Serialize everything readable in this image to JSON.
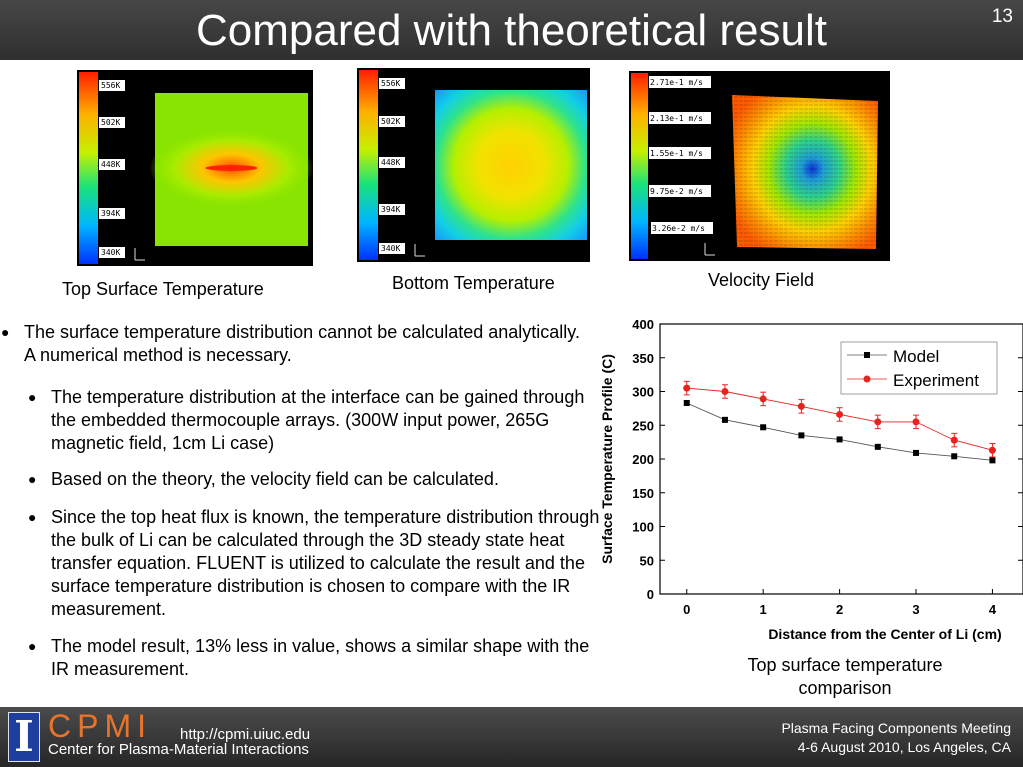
{
  "slide": {
    "title": "Compared with theoretical result",
    "number": "13"
  },
  "panels": {
    "top_surface": {
      "caption": "Top Surface Temperature",
      "scale": [
        "556K",
        "502K",
        "448K",
        "394K",
        "340K"
      ]
    },
    "bottom": {
      "caption": "Bottom Temperature",
      "scale": [
        "556K",
        "502K",
        "448K",
        "394K",
        "340K"
      ]
    },
    "velocity": {
      "caption": "Velocity Field",
      "scale": [
        "2.71e-1 m/s",
        "2.13e-1 m/s",
        "1.55e-1 m/s",
        "9.75e-2 m/s",
        "3.26e-2 m/s"
      ]
    }
  },
  "bullets": {
    "main": "The surface temperature distribution cannot be calculated analytically. A numerical method is necessary.",
    "sub1": "The temperature distribution at the interface can be gained through the embedded thermocouple arrays. (300W input power, 265G magnetic field, 1cm Li case)",
    "sub2": "Based on the theory, the velocity field can be calculated.",
    "sub3": "Since the top heat flux is known, the temperature distribution through the bulk of Li can be calculated through the 3D steady state heat transfer equation. FLUENT is utilized to calculate the result and the surface temperature distribution is chosen to compare with the IR measurement.",
    "sub4": "The model result, 13% less in value, shows a similar shape with the IR measurement."
  },
  "chart_caption": "Top surface temperature comparison",
  "chart_data": {
    "type": "line",
    "xlabel": "Distance from the Center of Li (cm)",
    "ylabel": "Surface Temperature Profile (C)",
    "xlim": [
      -0.35,
      4.4
    ],
    "ylim": [
      0,
      400
    ],
    "xticks": [
      0,
      1,
      2,
      3,
      4
    ],
    "yticks": [
      0,
      50,
      100,
      150,
      200,
      250,
      300,
      350,
      400
    ],
    "legend_position": "top-right",
    "series": [
      {
        "name": "Model",
        "color": "#000000",
        "marker": "square",
        "x": [
          0,
          0.5,
          1,
          1.5,
          2,
          2.5,
          3,
          3.5,
          4
        ],
        "y": [
          283,
          258,
          247,
          235,
          229,
          218,
          209,
          204,
          198
        ]
      },
      {
        "name": "Experiment",
        "color": "#e8231f",
        "marker": "circle",
        "x": [
          0,
          0.5,
          1,
          1.5,
          2,
          2.5,
          3,
          3.5,
          4
        ],
        "y": [
          305,
          300,
          289,
          278,
          266,
          255,
          255,
          228,
          213
        ],
        "error": [
          10,
          10,
          10,
          10,
          10,
          10,
          10,
          10,
          10
        ]
      }
    ]
  },
  "footer": {
    "logo_letter": "I",
    "org_short": "CPMI",
    "org_name": "Center for Plasma-Material Interactions",
    "url": "http://cpmi.uiuc.edu",
    "meeting_line1": "Plasma Facing Components Meeting",
    "meeting_line2": "4-6 August 2010, Los Angeles, CA"
  },
  "colors": {
    "header_bg": "#3a3a3a",
    "footer_bg": "#333333",
    "cpmi_orange": "#e8742c",
    "logo_blue": "#1f3f9e"
  }
}
